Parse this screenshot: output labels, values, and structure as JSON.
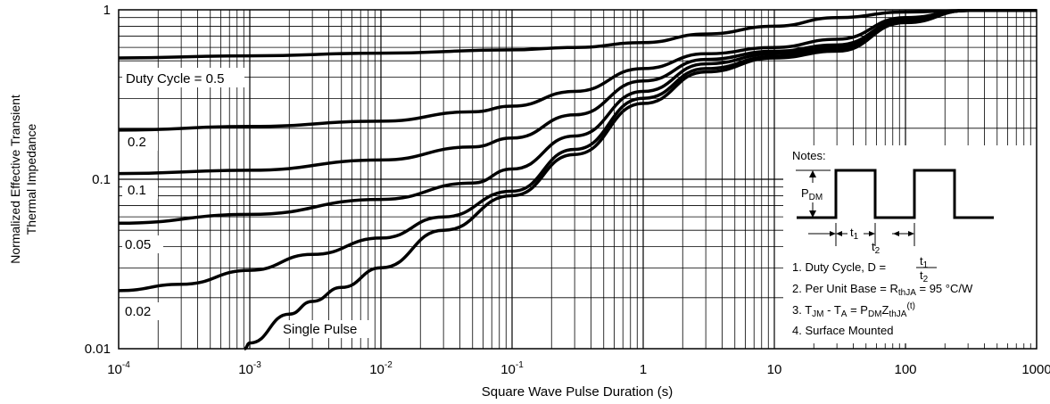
{
  "chart_data": {
    "type": "line",
    "x_scale": "log",
    "y_scale": "log",
    "xlim": [
      0.0001,
      1000
    ],
    "ylim": [
      0.01,
      1
    ],
    "xlabel": "Square Wave Pulse Duration (s)",
    "ylabel_line1": "Normalized Effective Transient",
    "ylabel_line2": "Thermal Impedance",
    "x_tick_labels": [
      {
        "base": "10",
        "exp": "-4",
        "value": 0.0001
      },
      {
        "base": "10",
        "exp": "-3",
        "value": 0.001
      },
      {
        "base": "10",
        "exp": "-2",
        "value": 0.01
      },
      {
        "base": "10",
        "exp": "-1",
        "value": 0.1
      },
      {
        "base": "1",
        "exp": "",
        "value": 1
      },
      {
        "base": "10",
        "exp": "",
        "value": 10
      },
      {
        "base": "100",
        "exp": "",
        "value": 100
      },
      {
        "base": "1000",
        "exp": "",
        "value": 1000
      }
    ],
    "y_tick_labels": [
      {
        "text": "1",
        "value": 1
      },
      {
        "text": "0.1",
        "value": 0.1
      },
      {
        "text": "0.01",
        "value": 0.01
      }
    ],
    "grid": true,
    "series": [
      {
        "name": "Duty Cycle = 0.5",
        "points": [
          [
            0.0001,
            0.52
          ],
          [
            0.001,
            0.535
          ],
          [
            0.01,
            0.555
          ],
          [
            0.1,
            0.58
          ],
          [
            0.3,
            0.6
          ],
          [
            1,
            0.64
          ],
          [
            3,
            0.72
          ],
          [
            10,
            0.8
          ],
          [
            30,
            0.9
          ],
          [
            100,
            0.97
          ],
          [
            300,
            0.99
          ],
          [
            1000,
            0.99
          ]
        ]
      },
      {
        "name": "0.2",
        "points": [
          [
            0.0001,
            0.195
          ],
          [
            0.001,
            0.205
          ],
          [
            0.01,
            0.22
          ],
          [
            0.05,
            0.25
          ],
          [
            0.1,
            0.27
          ],
          [
            0.3,
            0.33
          ],
          [
            1,
            0.45
          ],
          [
            3,
            0.55
          ],
          [
            10,
            0.6
          ],
          [
            30,
            0.67
          ],
          [
            100,
            0.9
          ],
          [
            300,
            0.99
          ],
          [
            1000,
            0.99
          ]
        ]
      },
      {
        "name": "0.1",
        "points": [
          [
            0.0001,
            0.108
          ],
          [
            0.001,
            0.113
          ],
          [
            0.01,
            0.13
          ],
          [
            0.05,
            0.155
          ],
          [
            0.1,
            0.175
          ],
          [
            0.3,
            0.24
          ],
          [
            1,
            0.38
          ],
          [
            3,
            0.51
          ],
          [
            10,
            0.57
          ],
          [
            30,
            0.62
          ],
          [
            100,
            0.87
          ],
          [
            300,
            0.99
          ],
          [
            1000,
            0.99
          ]
        ]
      },
      {
        "name": "0.05",
        "points": [
          [
            0.0001,
            0.055
          ],
          [
            0.001,
            0.062
          ],
          [
            0.01,
            0.076
          ],
          [
            0.05,
            0.095
          ],
          [
            0.1,
            0.115
          ],
          [
            0.3,
            0.18
          ],
          [
            1,
            0.33
          ],
          [
            3,
            0.48
          ],
          [
            10,
            0.55
          ],
          [
            30,
            0.6
          ],
          [
            100,
            0.86
          ],
          [
            300,
            0.99
          ],
          [
            1000,
            0.99
          ]
        ]
      },
      {
        "name": "0.02",
        "points": [
          [
            0.0001,
            0.022
          ],
          [
            0.0003,
            0.024
          ],
          [
            0.001,
            0.029
          ],
          [
            0.003,
            0.036
          ],
          [
            0.01,
            0.045
          ],
          [
            0.03,
            0.06
          ],
          [
            0.1,
            0.085
          ],
          [
            0.3,
            0.15
          ],
          [
            1,
            0.3
          ],
          [
            3,
            0.45
          ],
          [
            10,
            0.53
          ],
          [
            30,
            0.58
          ],
          [
            100,
            0.85
          ],
          [
            300,
            0.99
          ],
          [
            1000,
            0.99
          ]
        ]
      },
      {
        "name": "Single Pulse",
        "points": [
          [
            0.00091,
            0.0095
          ],
          [
            0.001,
            0.0108
          ],
          [
            0.002,
            0.016
          ],
          [
            0.003,
            0.019
          ],
          [
            0.005,
            0.023
          ],
          [
            0.01,
            0.03
          ],
          [
            0.03,
            0.05
          ],
          [
            0.1,
            0.08
          ],
          [
            0.3,
            0.14
          ],
          [
            1,
            0.28
          ],
          [
            3,
            0.43
          ],
          [
            10,
            0.52
          ],
          [
            30,
            0.57
          ],
          [
            100,
            0.84
          ],
          [
            300,
            0.99
          ],
          [
            1000,
            0.99
          ]
        ]
      }
    ],
    "notes": {
      "title": "Notes:",
      "pdm_base": "P",
      "pdm_sub": "DM",
      "t1_base": "t",
      "t1_sub": "1",
      "t2_base": "t",
      "t2_sub": "2",
      "n1_text": "1. Duty Cycle, D =",
      "n2_text": "2. Per Unit Base = R",
      "n2_sub": "thJA",
      "n2_tail": " = 95 °C/W",
      "n3_a": "3. T",
      "n3_a_sub": "JM",
      "n3_b": " - T",
      "n3_b_sub": "A",
      "n3_c": " = P",
      "n3_c_sub": "DM",
      "n3_d": "Z",
      "n3_d_sub": "thJA",
      "n3_sup": "(t)",
      "n4_text": "4. Surface Mounted"
    }
  }
}
